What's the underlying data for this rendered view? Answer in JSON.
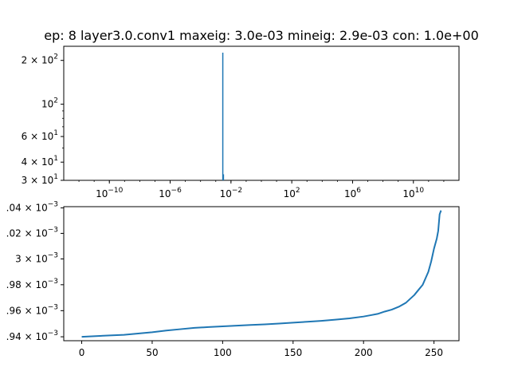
{
  "chart_data": [
    {
      "type": "bar",
      "title": "ep: 8 layer3.0.conv1 maxeig: 3.0e-03 mineig: 2.9e-03 con: 1.0e+00",
      "xlabel": "",
      "ylabel": "",
      "xscale": "log",
      "yscale": "log",
      "xlim": [
        1e-13,
        10000000000000.0
      ],
      "ylim": [
        30,
        250
      ],
      "xticks": [
        {
          "value": 1e-10,
          "base": "10",
          "exp": "−10"
        },
        {
          "value": 1e-06,
          "base": "10",
          "exp": "−6"
        },
        {
          "value": 0.01,
          "base": "10",
          "exp": "−2"
        },
        {
          "value": 100.0,
          "base": "10",
          "exp": "2"
        },
        {
          "value": 1000000.0,
          "base": "10",
          "exp": "6"
        },
        {
          "value": 10000000000.0,
          "base": "10",
          "exp": "10"
        }
      ],
      "yticks": [
        {
          "value": 200,
          "mant": "2 × 10",
          "exp": "2"
        },
        {
          "value": 100,
          "mant": "10",
          "exp": "2"
        },
        {
          "value": 60,
          "mant": "6 × 10",
          "exp": "1"
        },
        {
          "value": 40,
          "mant": "4 × 10",
          "exp": "1"
        },
        {
          "value": 30,
          "mant": "3 × 10",
          "exp": "1"
        }
      ],
      "bars": [
        {
          "x": 0.0029,
          "height": 226
        },
        {
          "x": 0.0032,
          "height": 33
        }
      ],
      "color": "#1f77b4",
      "grid": false
    },
    {
      "type": "line",
      "title": "",
      "xlabel": "",
      "ylabel": "",
      "yscale": "log",
      "xlim": [
        -12.75,
        267.75
      ],
      "ylim": [
        0.002937,
        0.003041
      ],
      "xticks": [
        0,
        50,
        100,
        150,
        200,
        250
      ],
      "yticks": [
        {
          "value": 0.00304,
          "label": ".04 × 10",
          "exp": "−3"
        },
        {
          "value": 0.00302,
          "label": ".02 × 10",
          "exp": "−3"
        },
        {
          "value": 0.003,
          "label": "3 × 10",
          "exp": "−3"
        },
        {
          "value": 0.00298,
          "label": ".98 × 10",
          "exp": "−3"
        },
        {
          "value": 0.00296,
          "label": ".96 × 10",
          "exp": "−3"
        },
        {
          "value": 0.00294,
          "label": ".94 × 10",
          "exp": "−3"
        }
      ],
      "series": [
        {
          "x": [
            0,
            10,
            20,
            30,
            40,
            50,
            60,
            70,
            80,
            90,
            100,
            110,
            120,
            130,
            140,
            150,
            160,
            170,
            180,
            190,
            200,
            205,
            210,
            215,
            220,
            225,
            230,
            233,
            236,
            239,
            242,
            244,
            246,
            248,
            250,
            252,
            253,
            254,
            255
          ],
          "y": [
            0.00294,
            0.0029405,
            0.002941,
            0.0029415,
            0.0029425,
            0.0029435,
            0.0029448,
            0.0029458,
            0.0029468,
            0.0029474,
            0.002948,
            0.0029485,
            0.002949,
            0.0029495,
            0.0029501,
            0.0029508,
            0.0029515,
            0.0029522,
            0.0029531,
            0.0029541,
            0.0029555,
            0.0029565,
            0.0029575,
            0.0029593,
            0.0029608,
            0.002963,
            0.002966,
            0.002969,
            0.002972,
            0.002976,
            0.00298,
            0.002985,
            0.00299,
            0.002998,
            0.003008,
            0.003016,
            0.003022,
            0.003035,
            0.003038
          ]
        }
      ],
      "color": "#1f77b4",
      "grid": false
    }
  ]
}
